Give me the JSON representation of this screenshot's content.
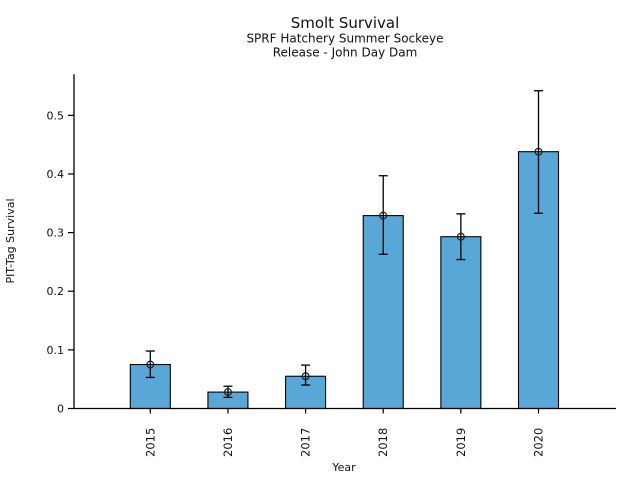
{
  "title": "Smolt Survival",
  "subtitle_line1": "SPRF Hatchery Summer Sockeye",
  "subtitle_line2": "Release - John Day Dam",
  "chart_data": {
    "type": "bar",
    "title": "Smolt Survival",
    "subtitle": [
      "SPRF Hatchery Summer Sockeye",
      "Release - John Day Dam"
    ],
    "categories": [
      "2015",
      "2016",
      "2017",
      "2018",
      "2019",
      "2020"
    ],
    "values": [
      0.075,
      0.028,
      0.055,
      0.329,
      0.293,
      0.438
    ],
    "error_low": [
      0.053,
      0.019,
      0.04,
      0.263,
      0.254,
      0.333
    ],
    "error_high": [
      0.098,
      0.038,
      0.074,
      0.397,
      0.332,
      0.542
    ],
    "xlabel": "Year",
    "ylabel": "PIT-Tag Survival",
    "ylim": [
      0,
      0.57
    ],
    "yticks": [
      0,
      0.1,
      0.2,
      0.3,
      0.4,
      0.5
    ],
    "ytick_labels": [
      "0",
      "0.1",
      "0.2",
      "0.3",
      "0.4",
      "0.5"
    ],
    "xtick_rotation_deg": 90,
    "grid": false,
    "legend": null,
    "bar_color": "#58a7d6",
    "bar_edge_color": "#000000",
    "error_bar_color": "#000000",
    "marker": "open-circle",
    "marker_edge_color": "#1a1a1a",
    "background_color": "#ffffff"
  }
}
